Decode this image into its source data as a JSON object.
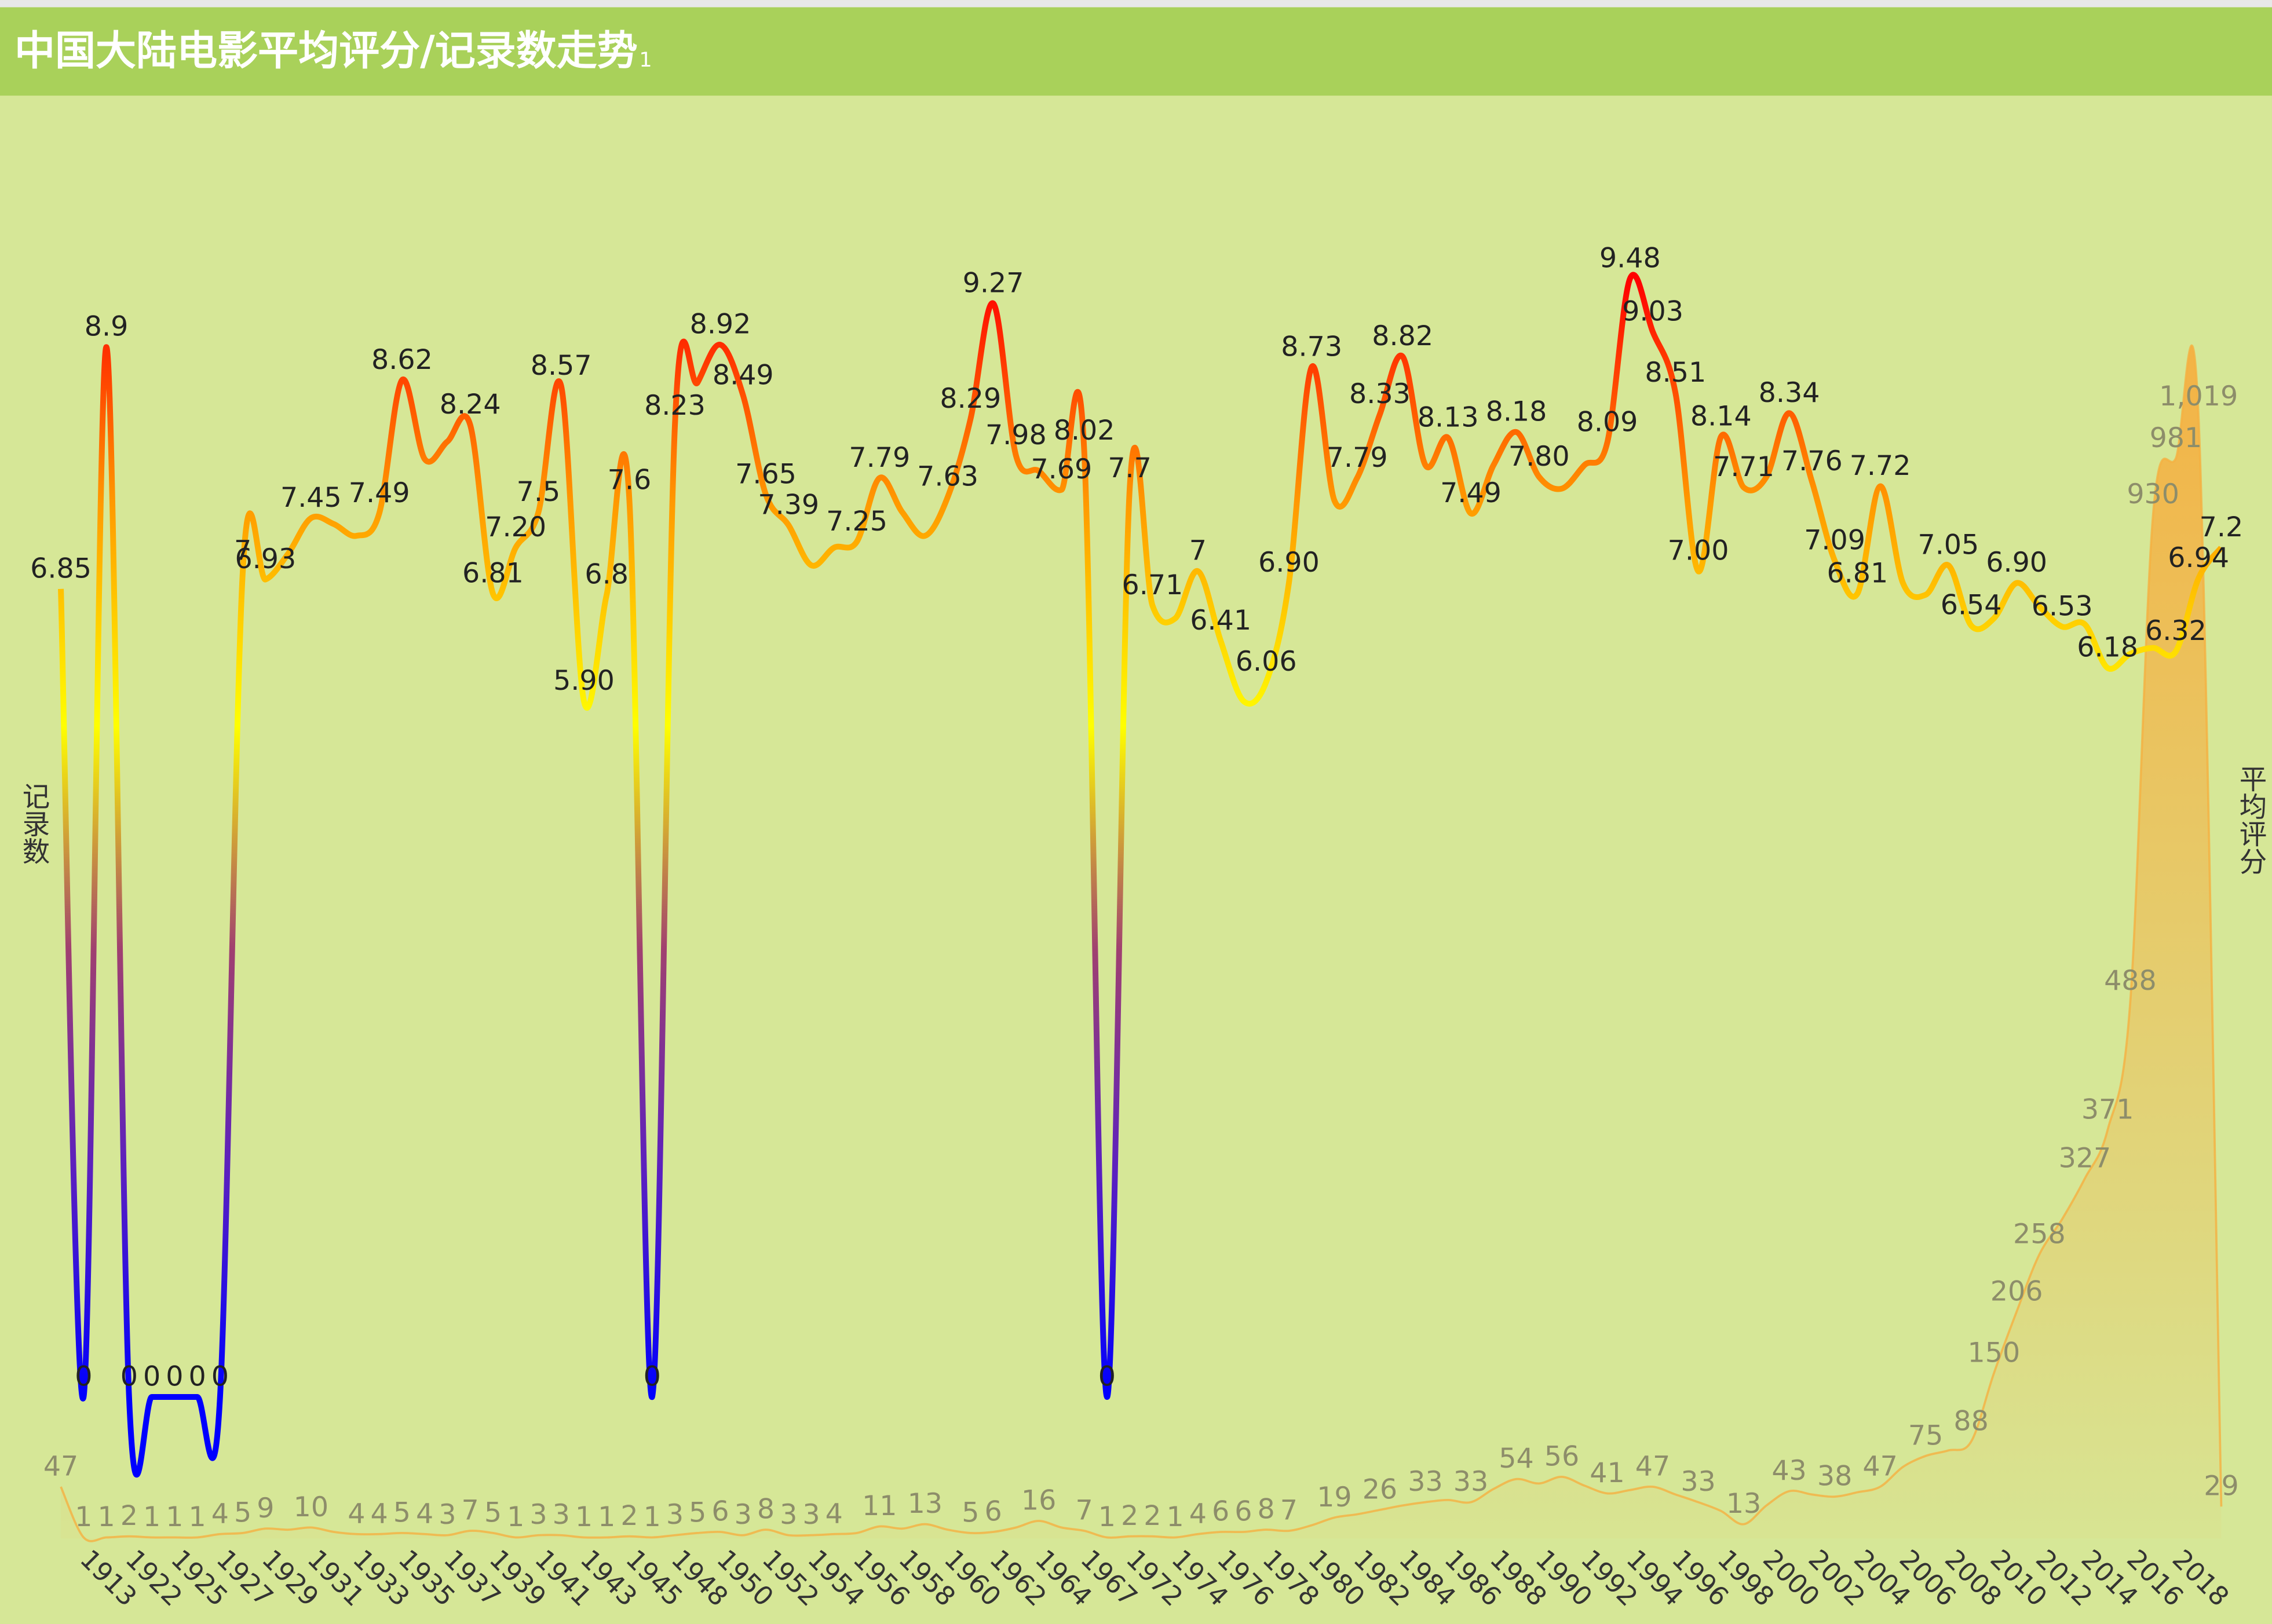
{
  "chart_data": {
    "type": "line",
    "title": "中国大陆电影平均评分/记录数走势",
    "subtitle": "1",
    "ylabel": "记录数",
    "y2label": "平均评分",
    "ylim": [
      0,
      1200
    ],
    "y2lim": [
      -1.2,
      10
    ],
    "categories": [
      null,
      "1913",
      null,
      "1922",
      null,
      "1925",
      null,
      "1927",
      null,
      "1929",
      null,
      "1931",
      null,
      "1933",
      null,
      "1935",
      null,
      "1937",
      null,
      "1939",
      null,
      "1941",
      null,
      "1943",
      null,
      "1945",
      null,
      "1948",
      null,
      "1950",
      null,
      "1952",
      null,
      "1954",
      null,
      "1956",
      null,
      "1958",
      null,
      "1960",
      null,
      "1962",
      null,
      "1964",
      null,
      "1967",
      null,
      "1972",
      null,
      "1974",
      null,
      "1976",
      null,
      "1978",
      null,
      "1980",
      null,
      "1982",
      null,
      "1984",
      null,
      "1986",
      null,
      "1988",
      null,
      "1990",
      null,
      "1992",
      null,
      "1994",
      null,
      "1996",
      null,
      "1998",
      null,
      "2000",
      null,
      "2002",
      null,
      "2004",
      null,
      "2006",
      null,
      "2008",
      null,
      "2010",
      null,
      "2012",
      null,
      "2014",
      null,
      "2016",
      null,
      "2018",
      null,
      null
    ],
    "series": [
      {
        "type": "area",
        "color": "#f5b041",
        "values": [
          47,
          1,
          1,
          2,
          1,
          1,
          1,
          4,
          5,
          9,
          8,
          10,
          6,
          4,
          4,
          5,
          4,
          3,
          7,
          5,
          1,
          3,
          3,
          1,
          1,
          2,
          1,
          3,
          5,
          6,
          3,
          8,
          3,
          3,
          4,
          5,
          11,
          9,
          13,
          8,
          5,
          6,
          10,
          16,
          10,
          7,
          1,
          2,
          2,
          1,
          4,
          6,
          6,
          8,
          7,
          12,
          19,
          22,
          26,
          30,
          33,
          35,
          33,
          45,
          54,
          50,
          56,
          48,
          41,
          44,
          47,
          40,
          33,
          25,
          13,
          30,
          43,
          40,
          38,
          42,
          47,
          65,
          75,
          80,
          88,
          150,
          206,
          258,
          290,
          327,
          371,
          488,
          930,
          981,
          1019,
          29
        ],
        "value_labels": [
          "47",
          "1",
          "1",
          "2",
          "1",
          "1",
          "1",
          "4",
          "5",
          "9",
          null,
          "10",
          null,
          "4",
          "4",
          "5",
          "4",
          "3",
          "7",
          "5",
          "1",
          "3",
          "3",
          "1",
          "1",
          "2",
          "1",
          "3",
          "5",
          "6",
          "3",
          "8",
          "3",
          "3",
          "4",
          null,
          "11",
          null,
          "13",
          null,
          "5",
          "6",
          null,
          "16",
          null,
          "7",
          "1",
          "2",
          "2",
          "1",
          "4",
          "6",
          "6",
          "8",
          "7",
          null,
          "19",
          null,
          "26",
          null,
          "33",
          null,
          "33",
          null,
          "54",
          null,
          "56",
          null,
          "41",
          null,
          "47",
          null,
          "33",
          null,
          "13",
          null,
          "43",
          null,
          "38",
          null,
          "47",
          null,
          "75",
          null,
          "88",
          "150",
          "206",
          "258",
          null,
          "327",
          "371",
          "488",
          "930",
          "981",
          "1,019",
          "29"
        ]
      },
      {
        "type": "line",
        "axis": "y2",
        "color": [
          "#0000ff",
          "#5a20c0",
          "#a04070",
          "#ffff00",
          "#ff9900",
          "#ff0000"
        ],
        "values": [
          6.85,
          0,
          8.9,
          0,
          0,
          0,
          0,
          0,
          7,
          6.93,
          7.15,
          7.45,
          7.4,
          7.3,
          7.49,
          8.62,
          7.95,
          8.1,
          8.24,
          6.81,
          7.2,
          7.5,
          8.57,
          5.9,
          6.8,
          7.6,
          0,
          8.23,
          8.6,
          8.92,
          8.49,
          7.65,
          7.39,
          7.05,
          7.2,
          7.25,
          7.79,
          7.5,
          7.3,
          7.63,
          8.29,
          9.27,
          7.98,
          7.85,
          7.69,
          8.02,
          0,
          7.7,
          6.71,
          6.6,
          7,
          6.41,
          5.9,
          6.06,
          6.9,
          8.73,
          7.6,
          7.79,
          8.33,
          8.82,
          7.9,
          8.13,
          7.49,
          7.9,
          8.18,
          7.8,
          7.7,
          7.9,
          8.09,
          9.48,
          9.03,
          8.51,
          7.0,
          8.14,
          7.71,
          7.8,
          8.34,
          7.76,
          7.09,
          6.81,
          7.72,
          6.9,
          6.8,
          7.05,
          6.54,
          6.6,
          6.9,
          6.7,
          6.53,
          6.55,
          6.18,
          6.3,
          6.35,
          6.32,
          6.94,
          7.2
        ],
        "value_labels": [
          "6.85",
          "0",
          "8.9",
          "0",
          "0",
          "0",
          "0",
          "0",
          "7",
          "6.93",
          null,
          "7.45",
          null,
          null,
          "7.49",
          "8.62",
          null,
          null,
          "8.24",
          "6.81",
          "7.20",
          "7.5",
          "8.57",
          "5.90",
          "6.8",
          "7.6",
          "0",
          "8.23",
          null,
          "8.92",
          "8.49",
          "7.65",
          "7.39",
          null,
          null,
          "7.25",
          "7.79",
          null,
          null,
          "7.63",
          "8.29",
          "9.27",
          "7.98",
          null,
          "7.69",
          "8.02",
          "0",
          "7.7",
          "6.71",
          null,
          "7",
          "6.41",
          null,
          "6.06",
          "6.90",
          "8.73",
          null,
          "7.79",
          "8.33",
          "8.82",
          null,
          "8.13",
          "7.49",
          null,
          "8.18",
          "7.80",
          null,
          null,
          "8.09",
          "9.48",
          "9.03",
          "8.51",
          "7.00",
          "8.14",
          "7.71",
          null,
          "8.34",
          "7.76",
          "7.09",
          "6.81",
          "7.72",
          null,
          null,
          "7.05",
          "6.54",
          null,
          "6.90",
          null,
          "6.53",
          null,
          "6.18",
          null,
          null,
          "6.32",
          "6.94",
          "7.2"
        ]
      }
    ]
  }
}
